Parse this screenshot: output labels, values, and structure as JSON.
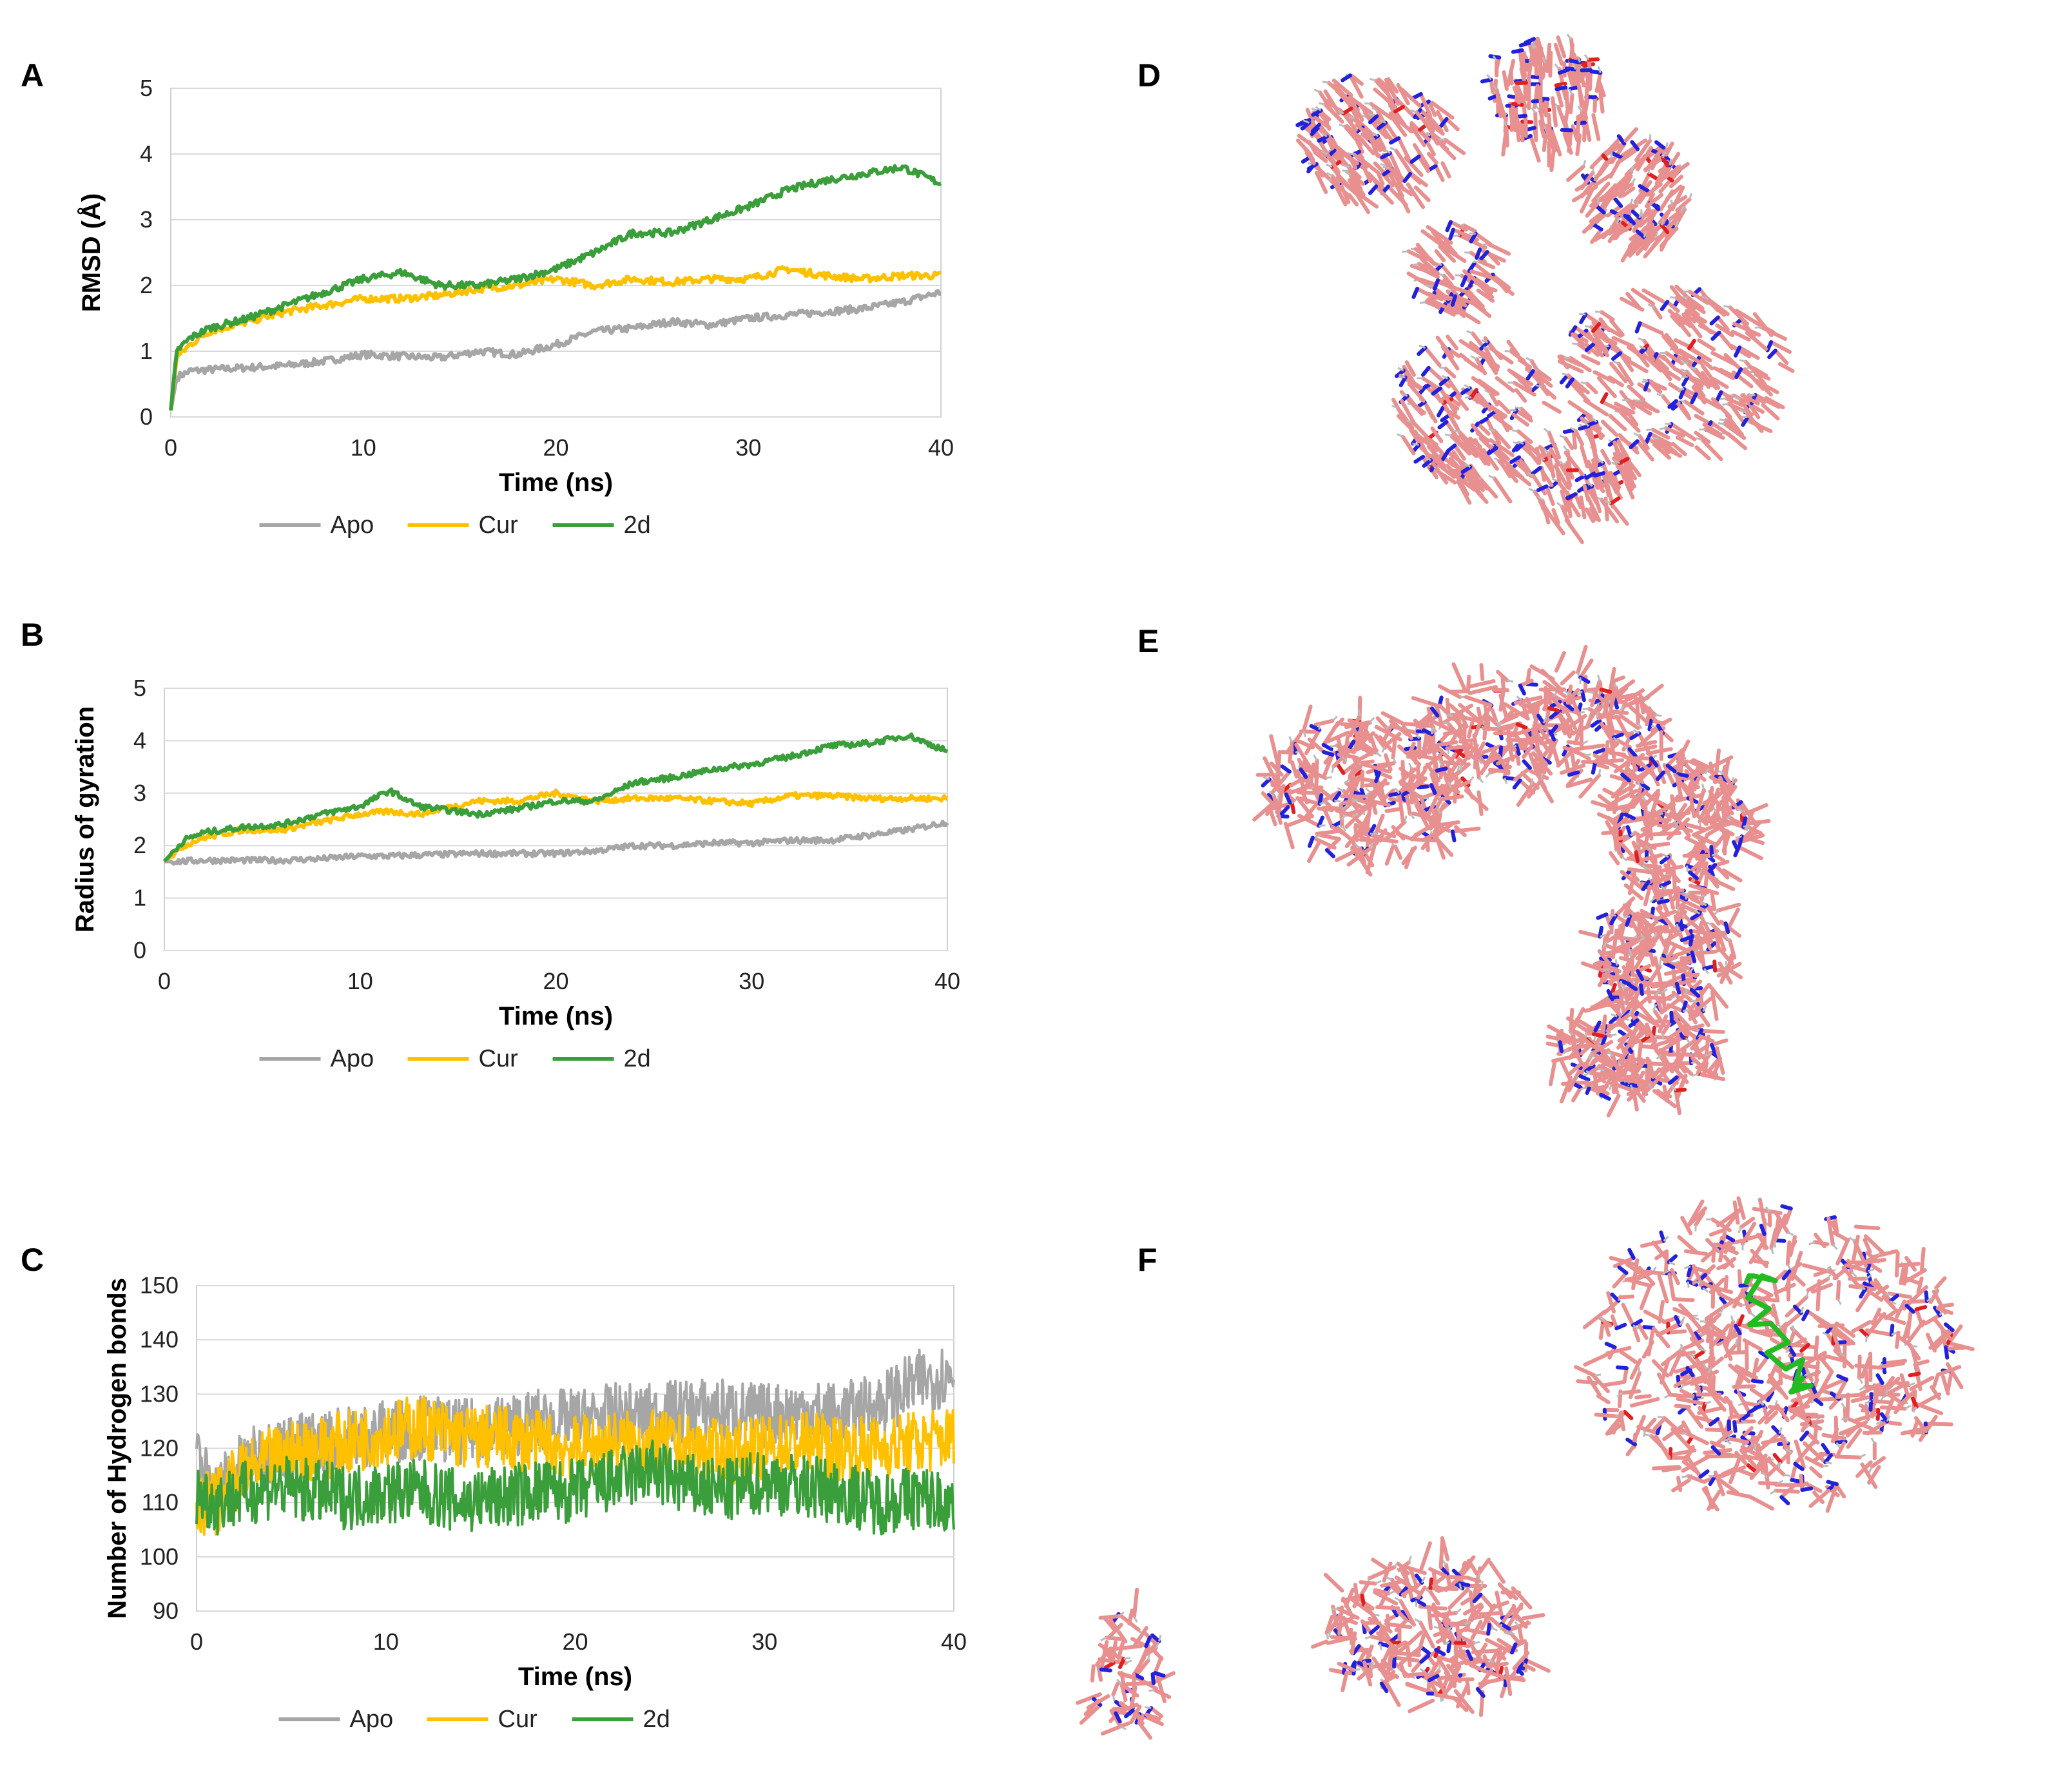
{
  "panels": {
    "A": "A",
    "B": "B",
    "C": "C",
    "D": "D",
    "E": "E",
    "F": "F"
  },
  "colors": {
    "apo": "#a6a6a6",
    "cur": "#ffc000",
    "d2": "#3a9e3a",
    "carbon": "#e8908f",
    "nitrogen": "#2222dd",
    "oxygen": "#e02020",
    "ligand": "#22bb22"
  },
  "chart_data": [
    {
      "id": "A",
      "type": "line",
      "title": "",
      "xlabel": "Time (ns)",
      "ylabel": "RMSD (Å)",
      "xlim": [
        0,
        40
      ],
      "ylim": [
        0,
        5
      ],
      "xticks": [
        "0",
        "10",
        "20",
        "30",
        "40"
      ],
      "yticks": [
        "0",
        "1",
        "2",
        "3",
        "4",
        "5"
      ],
      "grid": true,
      "legend": "bottom",
      "x": [
        0,
        0.3,
        1,
        2,
        4,
        6,
        8,
        10,
        12,
        14,
        16,
        18,
        20,
        22,
        24,
        26,
        28,
        30,
        32,
        34,
        36,
        38,
        40
      ],
      "series": [
        {
          "name": "Apo",
          "values": [
            0.1,
            0.6,
            0.7,
            0.72,
            0.75,
            0.78,
            0.85,
            0.95,
            0.92,
            0.9,
            1.0,
            0.95,
            1.1,
            1.3,
            1.35,
            1.45,
            1.4,
            1.5,
            1.55,
            1.6,
            1.65,
            1.75,
            1.9
          ]
        },
        {
          "name": "Cur",
          "values": [
            0.1,
            0.9,
            1.1,
            1.3,
            1.45,
            1.6,
            1.7,
            1.8,
            1.8,
            1.85,
            1.95,
            2.0,
            2.1,
            2.0,
            2.1,
            2.05,
            2.1,
            2.1,
            2.25,
            2.15,
            2.1,
            2.15,
            2.15
          ]
        },
        {
          "name": "2d",
          "values": [
            0.1,
            1.0,
            1.2,
            1.35,
            1.5,
            1.7,
            1.9,
            2.1,
            2.2,
            2.0,
            2.0,
            2.1,
            2.25,
            2.5,
            2.8,
            2.8,
            3.0,
            3.2,
            3.45,
            3.6,
            3.7,
            3.8,
            3.55
          ]
        }
      ]
    },
    {
      "id": "B",
      "type": "line",
      "title": "",
      "xlabel": "Time (ns)",
      "ylabel": "Radius of gyration",
      "xlim": [
        0,
        40
      ],
      "ylim": [
        0,
        5
      ],
      "xticks": [
        "0",
        "10",
        "20",
        "30",
        "40"
      ],
      "yticks": [
        "0",
        "1",
        "2",
        "3",
        "4",
        "5"
      ],
      "grid": true,
      "legend": "bottom",
      "x": [
        0,
        1,
        2,
        4,
        6,
        8,
        10,
        11.5,
        13,
        16,
        18,
        20,
        22,
        24,
        26,
        28,
        30,
        32,
        34,
        36,
        38,
        40
      ],
      "series": [
        {
          "name": "Apo",
          "values": [
            1.7,
            1.7,
            1.72,
            1.72,
            1.72,
            1.75,
            1.8,
            1.8,
            1.82,
            1.85,
            1.85,
            1.85,
            1.9,
            2.0,
            2.0,
            2.05,
            2.05,
            2.1,
            2.1,
            2.2,
            2.3,
            2.45
          ]
        },
        {
          "name": "Cur",
          "values": [
            1.7,
            2.0,
            2.15,
            2.3,
            2.3,
            2.45,
            2.6,
            2.65,
            2.6,
            2.85,
            2.85,
            3.0,
            2.85,
            2.9,
            2.9,
            2.85,
            2.8,
            2.95,
            2.95,
            2.9,
            2.9,
            2.9
          ]
        },
        {
          "name": "2d",
          "values": [
            1.7,
            2.1,
            2.25,
            2.35,
            2.4,
            2.6,
            2.75,
            3.05,
            2.75,
            2.6,
            2.7,
            2.85,
            2.85,
            3.2,
            3.3,
            3.45,
            3.55,
            3.7,
            3.9,
            3.95,
            4.1,
            3.8
          ]
        }
      ]
    },
    {
      "id": "C",
      "type": "line",
      "title": "",
      "xlabel": "Time (ns)",
      "ylabel": "Number of Hydrogen bonds",
      "xlim": [
        0,
        40
      ],
      "ylim": [
        90,
        150
      ],
      "xticks": [
        "0",
        "10",
        "20",
        "30",
        "40"
      ],
      "yticks": [
        "90",
        "100",
        "110",
        "120",
        "130",
        "140",
        "150"
      ],
      "grid": true,
      "legend": "bottom",
      "x": [
        0,
        1,
        2,
        4,
        6,
        8,
        10,
        12,
        14,
        16,
        18,
        20,
        22,
        24,
        26,
        28,
        30,
        32,
        34,
        36,
        38,
        40
      ],
      "series": [
        {
          "name": "Apo",
          "values": [
            118,
            112,
            116,
            120,
            121,
            122,
            123,
            124,
            123,
            124,
            125,
            125,
            126,
            126,
            127,
            127,
            126,
            127,
            126,
            128,
            132,
            134
          ]
        },
        {
          "name": "Cur",
          "values": [
            110,
            110,
            114,
            118,
            120,
            121,
            123,
            124,
            122,
            122,
            121,
            120,
            121,
            121,
            120,
            119,
            120,
            121,
            120,
            120,
            121,
            122
          ]
        },
        {
          "name": "2d",
          "values": [
            112,
            110,
            111,
            113,
            112,
            111,
            112,
            112,
            110,
            111,
            112,
            112,
            114,
            116,
            113,
            112,
            114,
            113,
            112,
            110,
            111,
            110
          ]
        }
      ]
    }
  ]
}
